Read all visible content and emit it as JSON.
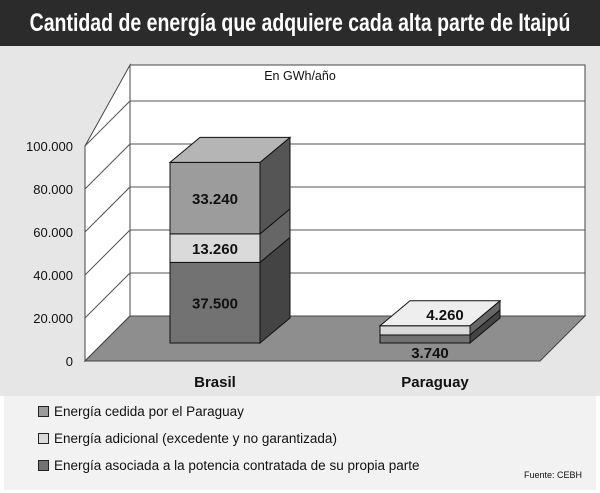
{
  "title": "Cantidad de energía que adquiere cada alta parte de Itaipú",
  "source": "Fuente: CEBH",
  "colors": {
    "cedida": "#9c9c9c",
    "adicional": "#dadada",
    "asociada": "#727272"
  },
  "chart_data": {
    "type": "bar",
    "stacked": true,
    "three_d": true,
    "title": "Cantidad de energía que adquiere cada alta parte de Itaipú",
    "subtitle": "En GWh/año",
    "categories": [
      "Brasil",
      "Paraguay"
    ],
    "series": [
      {
        "name": "Energía asociada a la potencia contratada de su propia parte",
        "key": "asociada",
        "values": [
          37500,
          3740
        ],
        "labels": [
          "37.500",
          "3.740"
        ]
      },
      {
        "name": "Energía adicional (excedente y no garantizada)",
        "key": "adicional",
        "values": [
          13260,
          4260
        ],
        "labels": [
          "13.260",
          "4.260"
        ]
      },
      {
        "name": "Energía cedida por el Paraguay",
        "key": "cedida",
        "values": [
          33240,
          0
        ],
        "labels": [
          "33.240",
          ""
        ]
      }
    ],
    "legend_order": [
      "cedida",
      "adicional",
      "asociada"
    ],
    "ylim": [
      0,
      100000
    ],
    "yticks": [
      0,
      20000,
      40000,
      60000,
      80000,
      100000
    ],
    "ytick_labels": [
      "0",
      "20.000",
      "40.000",
      "60.000",
      "80.000",
      "100.000"
    ],
    "grid": true,
    "legend_position": "bottom"
  }
}
